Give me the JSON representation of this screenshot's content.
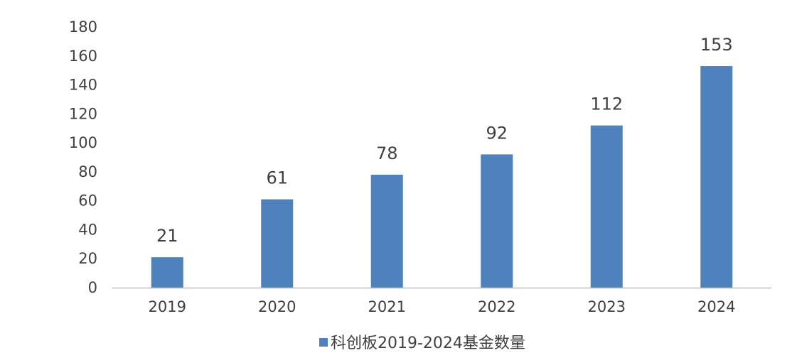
{
  "chart_data": {
    "type": "bar",
    "categories": [
      "2019",
      "2020",
      "2021",
      "2022",
      "2023",
      "2024"
    ],
    "series": [
      {
        "name": "科创板2019-2024基金数量",
        "values": [
          21,
          61,
          78,
          92,
          112,
          153
        ],
        "color": "#4F81BD"
      }
    ],
    "ylim": [
      0,
      180
    ],
    "yticks": [
      0,
      20,
      40,
      60,
      80,
      100,
      120,
      140,
      160,
      180
    ],
    "grid": false,
    "legend_position": "bottom",
    "data_labels": true,
    "axis_color": "#BFBFBF",
    "text_color": "#404040"
  }
}
